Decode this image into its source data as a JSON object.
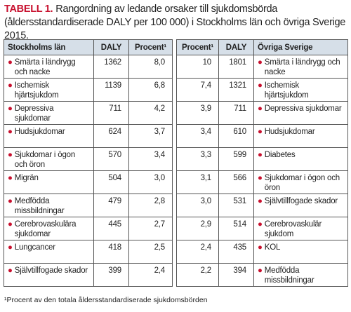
{
  "title": {
    "label": "TABELL 1.",
    "text": "Rangordning av ledande orsaker till sjukdomsbörda (åldersstandardiserade DALY per 100 000) i Stockholms län och övriga Sverige 2015."
  },
  "table": {
    "header": [
      "Stockholms län",
      "DALY",
      "Procent¹",
      "Procent¹",
      "DALY",
      "Övriga Sverige"
    ],
    "rows": [
      [
        "Smärta i ländrygg och nacke",
        "1362",
        "8,0",
        "10",
        "1801",
        "Smärta i ländrygg och nacke"
      ],
      [
        "Ischemisk hjärtsjukdom",
        "1139",
        "6,8",
        "7,4",
        "1321",
        "Ischemisk hjärtsjukdom"
      ],
      [
        "Depressiva sjukdomar",
        "711",
        "4,2",
        "3,9",
        "711",
        "Depressiva sjukdomar"
      ],
      [
        "Hudsjukdomar",
        "624",
        "3,7",
        "3,4",
        "610",
        "Hudsjukdomar"
      ],
      [
        "Sjukdomar i ögon och öron",
        "570",
        "3,4",
        "3,3",
        "599",
        "Diabetes"
      ],
      [
        "Migrän",
        "504",
        "3,0",
        "3,1",
        "566",
        "Sjukdomar i ögon och öron"
      ],
      [
        "Medfödda missbildningar",
        "479",
        "2,8",
        "3,0",
        "531",
        "Självtillfogade skador"
      ],
      [
        "Cerebrovaskulära sjukdomar",
        "445",
        "2,7",
        "2,9",
        "514",
        "Cerebrovaskulär sjukdom"
      ],
      [
        "Lungcancer",
        "418",
        "2,5",
        "2,4",
        "435",
        "KOL"
      ],
      [
        "Självtillfogade skador",
        "399",
        "2,4",
        "2,2",
        "394",
        "Medfödda missbildningar"
      ]
    ]
  },
  "footnote": "¹Procent av den totala åldersstandardiserade sjukdomsbörden"
}
